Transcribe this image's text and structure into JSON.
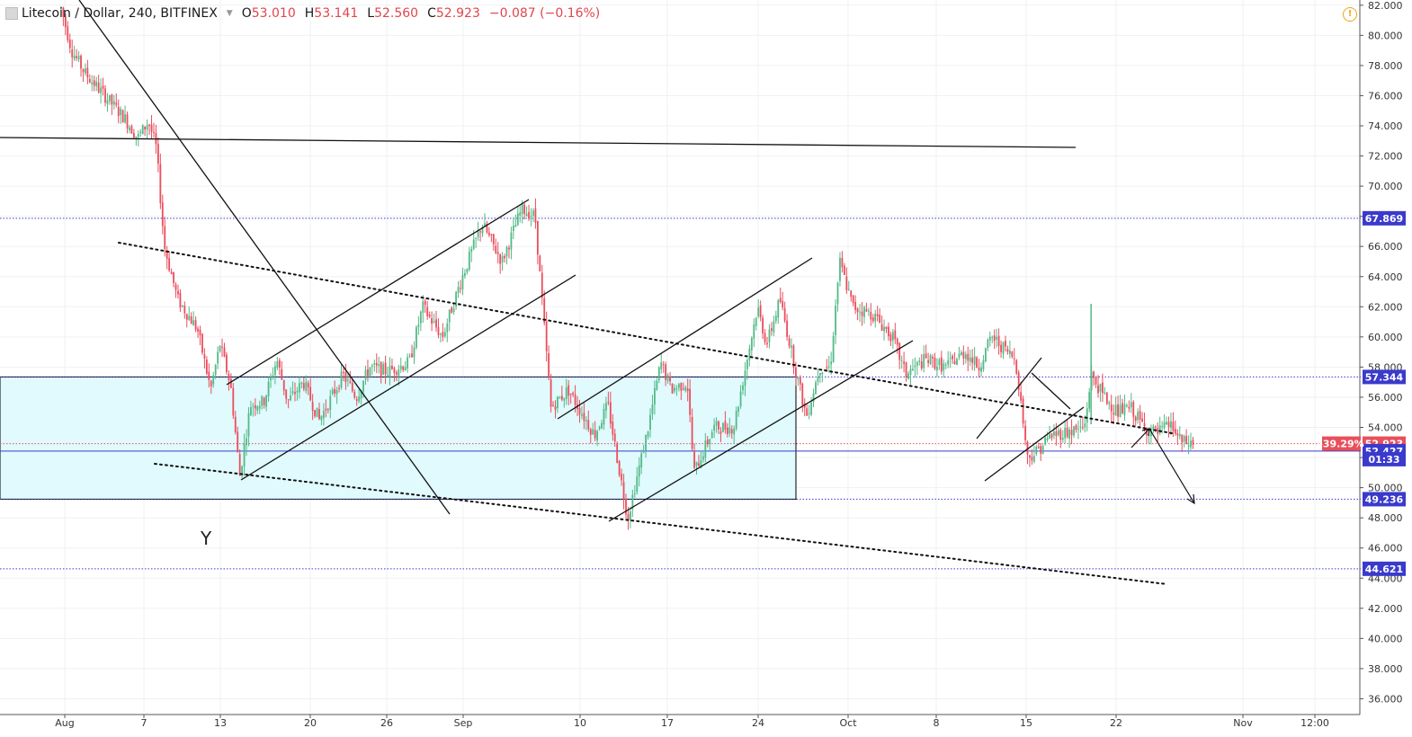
{
  "header": {
    "symbol": "Litecoin / Dollar, 240, BITFINEX",
    "open_label": "O",
    "open": "53.010",
    "high_label": "H",
    "high": "53.141",
    "low_label": "L",
    "low": "52.560",
    "close_label": "C",
    "close": "52.923",
    "change": "−0.087 (−0.16%)"
  },
  "alert_icon": "!",
  "chart_data": {
    "type": "candlestick",
    "title": "",
    "ylim": [
      35.5,
      82.4
    ],
    "y_ticks": [
      "36.000",
      "38.000",
      "40.000",
      "42.000",
      "44.000",
      "46.000",
      "48.000",
      "50.000",
      "52.000",
      "54.000",
      "56.000",
      "58.000",
      "60.000",
      "62.000",
      "64.000",
      "66.000",
      "68.000",
      "70.000",
      "72.000",
      "74.000",
      "76.000",
      "78.000",
      "80.000",
      "82.000"
    ],
    "x_ticks": [
      "Aug",
      "7",
      "13",
      "20",
      "26",
      "Sep",
      "10",
      "17",
      "24",
      "Oct",
      "8",
      "15",
      "22",
      "Nov",
      "12:00"
    ],
    "grid": true,
    "price_path": [
      [
        0.2,
        81.8
      ],
      [
        1.0,
        79.0
      ],
      [
        2.0,
        77.5
      ],
      [
        3.5,
        76.0
      ],
      [
        5.0,
        74.5
      ],
      [
        6.0,
        73.2
      ],
      [
        6.8,
        74.3
      ],
      [
        7.4,
        72.5
      ],
      [
        8.0,
        66.0
      ],
      [
        9.0,
        62.5
      ],
      [
        10.5,
        60.5
      ],
      [
        11.5,
        56.5
      ],
      [
        12.2,
        59.5
      ],
      [
        13.0,
        56.8
      ],
      [
        13.7,
        50.8
      ],
      [
        14.5,
        55.5
      ],
      [
        15.5,
        55.7
      ],
      [
        16.5,
        58.5
      ],
      [
        17.3,
        55.7
      ],
      [
        18.5,
        57.0
      ],
      [
        19.7,
        54.5
      ],
      [
        20.5,
        55.8
      ],
      [
        21.5,
        57.5
      ],
      [
        22.5,
        56.0
      ],
      [
        23.5,
        58.0
      ],
      [
        24.8,
        57.7
      ],
      [
        26.5,
        58.3
      ],
      [
        27.5,
        62.0
      ],
      [
        29.0,
        60.0
      ],
      [
        30.5,
        64.0
      ],
      [
        32.0,
        67.5
      ],
      [
        33.5,
        65.0
      ],
      [
        35.0,
        68.5
      ],
      [
        36.0,
        68.0
      ],
      [
        37.2,
        55.3
      ],
      [
        38.5,
        56.5
      ],
      [
        40.5,
        53.5
      ],
      [
        41.5,
        55.5
      ],
      [
        43.0,
        48.0
      ],
      [
        44.5,
        53.8
      ],
      [
        45.5,
        58.3
      ],
      [
        46.3,
        56.5
      ],
      [
        47.5,
        57.0
      ],
      [
        48.0,
        51.0
      ],
      [
        49.5,
        54.0
      ],
      [
        51.0,
        54.0
      ],
      [
        52.8,
        62.0
      ],
      [
        53.5,
        59.5
      ],
      [
        54.5,
        62.5
      ],
      [
        55.5,
        58.5
      ],
      [
        56.5,
        54.7
      ],
      [
        57.5,
        58.0
      ],
      [
        58.3,
        58.0
      ],
      [
        59.0,
        65.0
      ],
      [
        60.0,
        62.0
      ],
      [
        61.5,
        61.5
      ],
      [
        63.0,
        60.0
      ],
      [
        64.0,
        57.5
      ],
      [
        65.5,
        58.5
      ],
      [
        67.0,
        58.0
      ],
      [
        68.5,
        59.0
      ],
      [
        69.5,
        58.0
      ],
      [
        70.5,
        60.0
      ],
      [
        72.3,
        58.5
      ],
      [
        73.2,
        52.0
      ],
      [
        74.0,
        52.5
      ],
      [
        75.0,
        53.5
      ],
      [
        76.8,
        53.8
      ],
      [
        77.5,
        54.0
      ],
      [
        78.0,
        57.5
      ],
      [
        79.0,
        56.0
      ],
      [
        80.0,
        55.0
      ],
      [
        81.0,
        55.3
      ],
      [
        82.0,
        54.0
      ],
      [
        83.0,
        53.6
      ],
      [
        84.0,
        54.2
      ],
      [
        84.8,
        53.0
      ],
      [
        85.7,
        52.9
      ]
    ],
    "spike": {
      "x": 78.0,
      "high": 62.2
    },
    "levels": [
      {
        "price": 67.869,
        "label": "67.869",
        "style": "dotted-blue"
      },
      {
        "price": 57.344,
        "label": "57.344",
        "style": "dotted-blue"
      },
      {
        "price": 52.923,
        "label": "52.923",
        "style": "dotted-red"
      },
      {
        "price": 52.427,
        "label": "52.427",
        "style": "solid-blue"
      },
      {
        "price": 49.236,
        "label": "49.236",
        "style": "dotted-blue"
      },
      {
        "price": 44.621,
        "label": "44.621",
        "style": "dotted-blue"
      }
    ],
    "change_badge": "-39.29%",
    "countdown_badge": "01:33",
    "zone": {
      "top": 57.344,
      "bottom": 49.236,
      "fill": "#e0fafd"
    },
    "annotations": [
      {
        "text": "Y"
      }
    ],
    "colors": {
      "up": "#53b987",
      "down": "#eb4d5c",
      "level": "#3a3acc",
      "last": "#e8505b",
      "grid": "#eef1f5"
    }
  }
}
